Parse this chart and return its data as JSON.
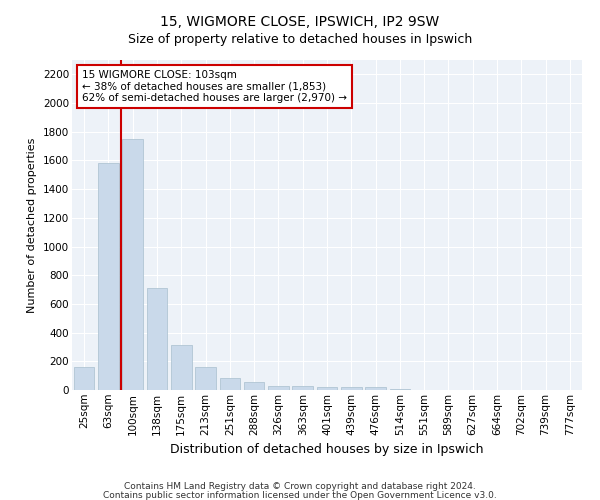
{
  "title1": "15, WIGMORE CLOSE, IPSWICH, IP2 9SW",
  "title2": "Size of property relative to detached houses in Ipswich",
  "xlabel": "Distribution of detached houses by size in Ipswich",
  "ylabel": "Number of detached properties",
  "footer1": "Contains HM Land Registry data © Crown copyright and database right 2024.",
  "footer2": "Contains public sector information licensed under the Open Government Licence v3.0.",
  "annotation_line1": "15 WIGMORE CLOSE: 103sqm",
  "annotation_line2": "← 38% of detached houses are smaller (1,853)",
  "annotation_line3": "62% of semi-detached houses are larger (2,970) →",
  "bar_color": "#c9d9ea",
  "bar_edgecolor": "#a8bfce",
  "vline_color": "#cc0000",
  "annotation_box_edgecolor": "#cc0000",
  "background_color": "#edf2f8",
  "categories": [
    "25sqm",
    "63sqm",
    "100sqm",
    "138sqm",
    "175sqm",
    "213sqm",
    "251sqm",
    "288sqm",
    "326sqm",
    "363sqm",
    "401sqm",
    "439sqm",
    "476sqm",
    "514sqm",
    "551sqm",
    "589sqm",
    "627sqm",
    "664sqm",
    "702sqm",
    "739sqm",
    "777sqm"
  ],
  "values": [
    160,
    1585,
    1750,
    710,
    315,
    160,
    85,
    55,
    30,
    25,
    20,
    20,
    20,
    5,
    3,
    2,
    2,
    2,
    2,
    2,
    2
  ],
  "vline_x": 1.5,
  "ylim": [
    0,
    2300
  ],
  "yticks": [
    0,
    200,
    400,
    600,
    800,
    1000,
    1200,
    1400,
    1600,
    1800,
    2000,
    2200
  ],
  "title1_fontsize": 10,
  "title2_fontsize": 9,
  "ylabel_fontsize": 8,
  "xlabel_fontsize": 9,
  "tick_fontsize": 7.5,
  "footer_fontsize": 6.5,
  "ann_fontsize": 7.5
}
